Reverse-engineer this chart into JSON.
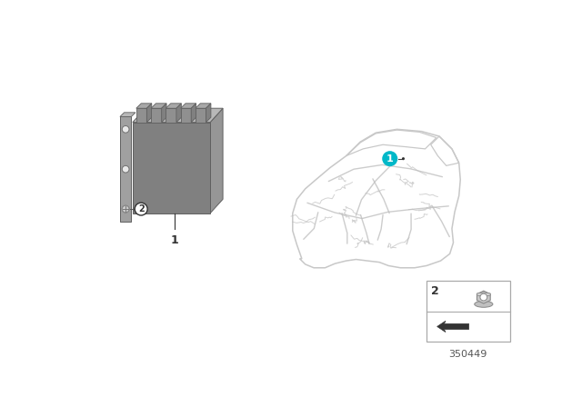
{
  "bg_color": "#ffffff",
  "part_number": "350449",
  "unit_color_dark": "#808080",
  "unit_color_mid": "#969696",
  "unit_color_light": "#b8b8b8",
  "unit_color_top": "#a8a8a8",
  "connector_color": "#909090",
  "bracket_color": "#a0a0a0",
  "car_outline_color": "#c8c8c8",
  "wire_color": "#c0c0c0",
  "badge_cyan": "#00b8c8",
  "text_color": "#333333",
  "detail_border": "#aaaaaa"
}
